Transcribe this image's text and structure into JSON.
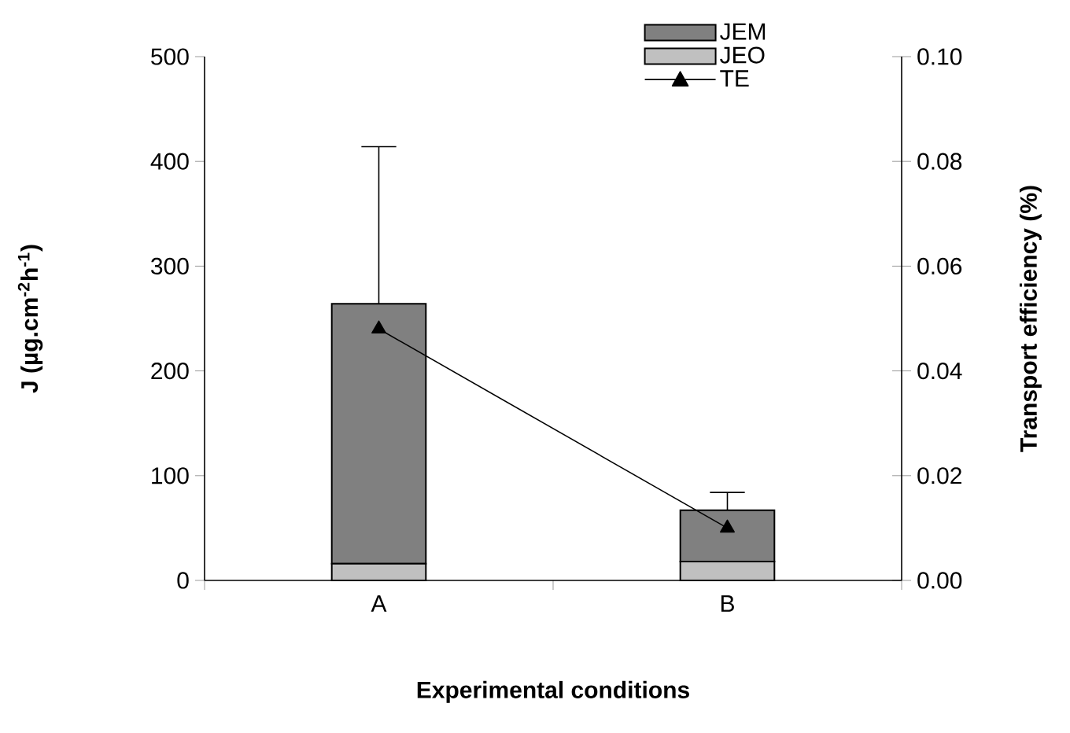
{
  "chart_data": {
    "type": "bar",
    "stacked": true,
    "xlabel": "Experimental conditions",
    "ylabel": "J (µg.cm$^{-2}$h$^{-1}$)",
    "y2label": "Transport efficiency (%)",
    "categories": [
      "A",
      "B"
    ],
    "series": [
      {
        "name": "JEO",
        "color": "#c0c0c0",
        "values": [
          16,
          18
        ]
      },
      {
        "name": "JEM",
        "color": "#808080",
        "values": [
          248,
          49
        ],
        "errors": [
          [
            264,
            414
          ],
          [
            67,
            84
          ]
        ]
      },
      {
        "name": "TE",
        "type": "line",
        "axis": "y2",
        "color": "#000000",
        "values": [
          0.048,
          0.01
        ],
        "marker": "triangle",
        "line_style": "solid"
      }
    ],
    "ylim": [
      0,
      500
    ],
    "yticks": [
      0,
      100,
      200,
      300,
      400,
      500
    ],
    "y2lim": [
      0,
      0.1
    ],
    "y2ticks": [
      {
        "value": 0,
        "label": "0.00"
      },
      {
        "value": 0.02,
        "label": "0.02"
      },
      {
        "value": 0.04,
        "label": "0.04"
      },
      {
        "value": 0.06,
        "label": "0.06"
      },
      {
        "value": 0.08,
        "label": "0.08"
      },
      {
        "value": 0.1,
        "label": "0.10"
      }
    ],
    "legend": "top right"
  }
}
